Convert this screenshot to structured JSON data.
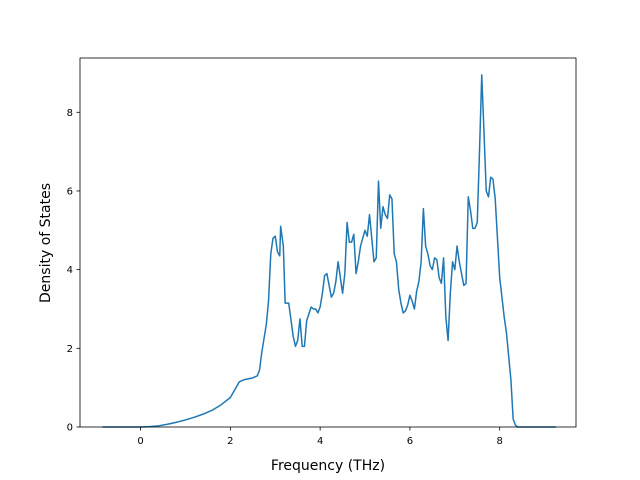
{
  "chart_data": {
    "type": "line",
    "xlabel": "Frequency (THz)",
    "ylabel": "Density of States",
    "xlim": [
      -1.35,
      9.7
    ],
    "ylim": [
      0,
      9.38
    ],
    "xticks": [
      0,
      2,
      4,
      6,
      8
    ],
    "yticks": [
      0,
      2,
      4,
      6,
      8
    ],
    "grid": false,
    "series": [
      {
        "color": "#1f77b4",
        "x": [
          -0.85,
          0,
          0.2,
          0.4,
          0.6,
          0.8,
          1.0,
          1.2,
          1.4,
          1.6,
          1.8,
          2.0,
          2.1,
          2.2,
          2.3,
          2.5,
          2.6,
          2.65,
          2.7,
          2.8,
          2.85,
          2.9,
          2.95,
          3.0,
          3.05,
          3.1,
          3.12,
          3.18,
          3.22,
          3.3,
          3.4,
          3.45,
          3.5,
          3.55,
          3.6,
          3.65,
          3.7,
          3.8,
          3.85,
          3.9,
          3.95,
          4.0,
          4.05,
          4.1,
          4.15,
          4.2,
          4.25,
          4.3,
          4.35,
          4.4,
          4.45,
          4.5,
          4.55,
          4.6,
          4.65,
          4.7,
          4.75,
          4.8,
          4.85,
          4.9,
          4.95,
          5.0,
          5.05,
          5.1,
          5.15,
          5.2,
          5.25,
          5.3,
          5.35,
          5.4,
          5.45,
          5.5,
          5.55,
          5.6,
          5.65,
          5.7,
          5.75,
          5.8,
          5.85,
          5.9,
          5.95,
          6.0,
          6.05,
          6.1,
          6.15,
          6.2,
          6.25,
          6.3,
          6.35,
          6.4,
          6.45,
          6.5,
          6.55,
          6.6,
          6.65,
          6.7,
          6.75,
          6.8,
          6.85,
          6.9,
          6.95,
          7.0,
          7.05,
          7.1,
          7.15,
          7.2,
          7.25,
          7.3,
          7.35,
          7.4,
          7.45,
          7.5,
          7.55,
          7.6,
          7.65,
          7.7,
          7.75,
          7.8,
          7.85,
          7.9,
          7.95,
          8.0,
          8.05,
          8.1,
          8.15,
          8.2,
          8.25,
          8.3,
          8.35,
          8.4,
          9.25
        ],
        "values": [
          0,
          0,
          0.01,
          0.03,
          0.07,
          0.12,
          0.18,
          0.25,
          0.33,
          0.43,
          0.57,
          0.75,
          0.95,
          1.15,
          1.2,
          1.25,
          1.3,
          1.45,
          1.9,
          2.6,
          3.2,
          4.4,
          4.8,
          4.85,
          4.45,
          4.35,
          5.1,
          4.6,
          3.15,
          3.15,
          2.3,
          2.05,
          2.2,
          2.75,
          2.05,
          2.05,
          2.7,
          3.05,
          3.0,
          3.0,
          2.9,
          3.05,
          3.4,
          3.85,
          3.9,
          3.6,
          3.3,
          3.4,
          3.7,
          4.2,
          3.8,
          3.4,
          3.9,
          5.2,
          4.7,
          4.7,
          4.9,
          3.9,
          4.2,
          4.6,
          4.8,
          5.0,
          4.85,
          5.4,
          4.8,
          4.2,
          4.3,
          6.25,
          5.05,
          5.6,
          5.4,
          5.3,
          5.9,
          5.8,
          4.4,
          4.2,
          3.5,
          3.15,
          2.9,
          2.95,
          3.1,
          3.35,
          3.2,
          3.0,
          3.45,
          3.7,
          4.2,
          5.55,
          4.6,
          4.4,
          4.1,
          4.0,
          4.3,
          4.25,
          3.8,
          3.65,
          4.3,
          2.8,
          2.2,
          3.4,
          4.2,
          4.0,
          4.6,
          4.2,
          3.9,
          3.6,
          3.65,
          5.85,
          5.5,
          5.05,
          5.05,
          5.2,
          7.0,
          8.95,
          7.5,
          6.0,
          5.85,
          6.35,
          6.3,
          5.8,
          4.8,
          3.8,
          3.3,
          2.8,
          2.4,
          1.8,
          1.2,
          0.2,
          0.05,
          0,
          0
        ]
      }
    ]
  }
}
